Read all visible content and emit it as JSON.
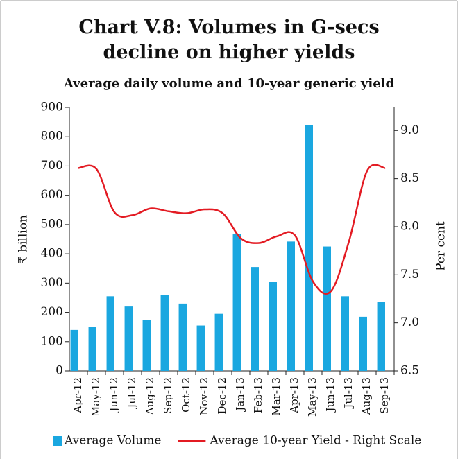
{
  "chart_data": {
    "type": "bar_line",
    "title": "Chart V.8: Volumes in G-secs decline on higher yields",
    "subtitle": "Average daily volume and 10-year generic yield",
    "y_label": "₹ billion",
    "y2_label": "Per cent",
    "categories": [
      "Apr-12",
      "May-12",
      "Jun-12",
      "Jul-12",
      "Aug-12",
      "Sep-12",
      "Oct-12",
      "Nov-12",
      "Dec-12",
      "Jan-13",
      "Feb-13",
      "Mar-13",
      "Apr-13",
      "May-13",
      "Jun-13",
      "Jul-13",
      "Aug-13",
      "Sep-13"
    ],
    "series": [
      {
        "name": "Average Volume",
        "type": "bar",
        "color": "#1aa7e0",
        "values": [
          140,
          150,
          255,
          220,
          175,
          260,
          230,
          155,
          195,
          468,
          355,
          305,
          442,
          840,
          425,
          255,
          185,
          235
        ]
      },
      {
        "name": "Average 10-year Yield - Right Scale",
        "type": "line",
        "axis": "y2",
        "color": "#e31b23",
        "values": [
          8.61,
          8.6,
          8.15,
          8.12,
          8.19,
          8.16,
          8.14,
          8.18,
          8.14,
          7.88,
          7.83,
          7.9,
          7.91,
          7.43,
          7.33,
          7.85,
          8.58,
          8.61
        ]
      }
    ],
    "ylim": [
      0,
      900
    ],
    "yticks": [
      0,
      100,
      200,
      300,
      400,
      500,
      600,
      700,
      800,
      900
    ],
    "y2lim": [
      6.5,
      9.24
    ],
    "y2ticks": [
      6.5,
      {
        "value": 7,
        "label": "7.0"
      },
      7.5,
      {
        "value": 8,
        "label": "8.0"
      },
      8.5,
      {
        "value": 9,
        "label": "9.0"
      }
    ],
    "legend": "bottom"
  }
}
